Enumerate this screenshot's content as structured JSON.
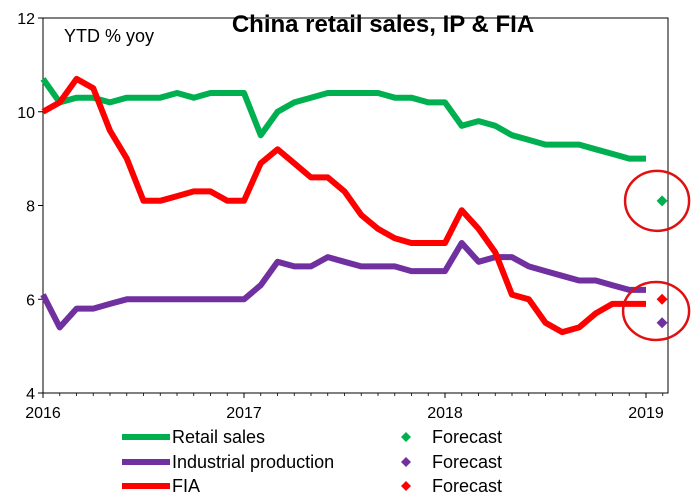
{
  "chart_data": {
    "type": "line",
    "title": "China retail sales, IP & FIA",
    "ylabel": "YTD % yoy",
    "xlabel": "",
    "ylim": [
      4,
      12
    ],
    "yticks": [
      "4",
      "6",
      "8",
      "10",
      "12"
    ],
    "xticks": [
      {
        "label": "2016",
        "x": 2016
      },
      {
        "label": "2017",
        "x": 2017
      },
      {
        "label": "2018",
        "x": 2018
      },
      {
        "label": "2019",
        "x": 2019
      }
    ],
    "xlim": [
      2016,
      2019.1
    ],
    "series": [
      {
        "name": "Retail sales",
        "color": "#00b050",
        "x": [
          2016.0,
          2016.083,
          2016.167,
          2016.25,
          2016.333,
          2016.417,
          2016.5,
          2016.583,
          2016.667,
          2016.75,
          2016.833,
          2016.917,
          2017.0,
          2017.083,
          2017.167,
          2017.25,
          2017.333,
          2017.417,
          2017.5,
          2017.583,
          2017.667,
          2017.75,
          2017.833,
          2017.917,
          2018.0,
          2018.083,
          2018.167,
          2018.25,
          2018.333,
          2018.417,
          2018.5,
          2018.583,
          2018.667,
          2018.75,
          2018.833,
          2018.917,
          2019.0
        ],
        "values": [
          10.7,
          10.2,
          10.3,
          10.3,
          10.2,
          10.3,
          10.3,
          10.3,
          10.4,
          10.3,
          10.4,
          10.4,
          10.4,
          9.5,
          10.0,
          10.2,
          10.3,
          10.4,
          10.4,
          10.4,
          10.4,
          10.3,
          10.3,
          10.2,
          10.2,
          9.7,
          9.8,
          9.7,
          9.5,
          9.4,
          9.3,
          9.3,
          9.3,
          9.2,
          9.1,
          9.0,
          9.0
        ]
      },
      {
        "name": "Industrial production",
        "color": "#7030a0",
        "x": [
          2016.0,
          2016.083,
          2016.167,
          2016.25,
          2016.333,
          2016.417,
          2016.5,
          2016.583,
          2016.667,
          2016.75,
          2016.833,
          2016.917,
          2017.0,
          2017.083,
          2017.167,
          2017.25,
          2017.333,
          2017.417,
          2017.5,
          2017.583,
          2017.667,
          2017.75,
          2017.833,
          2017.917,
          2018.0,
          2018.083,
          2018.167,
          2018.25,
          2018.333,
          2018.417,
          2018.5,
          2018.583,
          2018.667,
          2018.75,
          2018.833,
          2018.917,
          2019.0
        ],
        "values": [
          6.1,
          5.4,
          5.8,
          5.8,
          5.9,
          6.0,
          6.0,
          6.0,
          6.0,
          6.0,
          6.0,
          6.0,
          6.0,
          6.3,
          6.8,
          6.7,
          6.7,
          6.9,
          6.8,
          6.7,
          6.7,
          6.7,
          6.6,
          6.6,
          6.6,
          7.2,
          6.8,
          6.9,
          6.9,
          6.7,
          6.6,
          6.5,
          6.4,
          6.4,
          6.3,
          6.2,
          6.2
        ]
      },
      {
        "name": "FIA",
        "color": "#ff0000",
        "x": [
          2016.0,
          2016.083,
          2016.167,
          2016.25,
          2016.333,
          2016.417,
          2016.5,
          2016.583,
          2016.667,
          2016.75,
          2016.833,
          2016.917,
          2017.0,
          2017.083,
          2017.167,
          2017.25,
          2017.333,
          2017.417,
          2017.5,
          2017.583,
          2017.667,
          2017.75,
          2017.833,
          2017.917,
          2018.0,
          2018.083,
          2018.167,
          2018.25,
          2018.333,
          2018.417,
          2018.5,
          2018.583,
          2018.667,
          2018.75,
          2018.833,
          2018.917,
          2019.0
        ],
        "values": [
          10.0,
          10.2,
          10.7,
          10.5,
          9.6,
          9.0,
          8.1,
          8.1,
          8.2,
          8.3,
          8.3,
          8.1,
          8.1,
          8.9,
          9.2,
          8.9,
          8.6,
          8.6,
          8.3,
          7.8,
          7.5,
          7.3,
          7.2,
          7.2,
          7.2,
          7.9,
          7.5,
          7.0,
          6.1,
          6.0,
          5.5,
          5.3,
          5.4,
          5.7,
          5.9,
          5.9,
          5.9
        ]
      }
    ],
    "forecasts": [
      {
        "name": "Forecast",
        "series": "Retail sales",
        "x": 2019.08,
        "value": 8.1,
        "color": "#00b050"
      },
      {
        "name": "Forecast",
        "series": "Industrial production",
        "x": 2019.08,
        "value": 5.5,
        "color": "#7030a0"
      },
      {
        "name": "Forecast",
        "series": "FIA",
        "x": 2019.08,
        "value": 6.0,
        "color": "#ff0000"
      }
    ],
    "highlight_circle_color": "#e01010",
    "legend": {
      "placement": "bottom",
      "entries": [
        {
          "label": "Retail sales",
          "color": "#00b050",
          "kind": "line"
        },
        {
          "label": "Forecast",
          "color": "#00b050",
          "kind": "diamond"
        },
        {
          "label": "Industrial production",
          "color": "#7030a0",
          "kind": "line"
        },
        {
          "label": "Forecast",
          "color": "#7030a0",
          "kind": "diamond"
        },
        {
          "label": "FIA",
          "color": "#ff0000",
          "kind": "line"
        },
        {
          "label": "Forecast",
          "color": "#ff0000",
          "kind": "diamond"
        }
      ]
    },
    "grid": false
  }
}
